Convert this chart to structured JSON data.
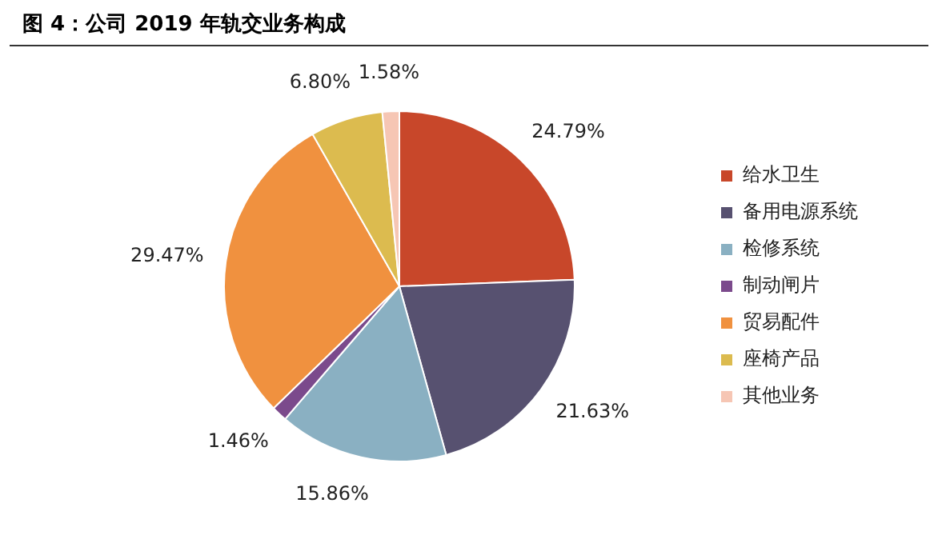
{
  "chart_data": {
    "type": "pie",
    "title": "图 4：公司 2019 年轨交业务构成",
    "categories": [
      "给水卫生",
      "备用电源系统",
      "检修系统",
      "制动闸片",
      "贸易配件",
      "座椅产品",
      "其他业务"
    ],
    "values": [
      24.79,
      21.63,
      15.86,
      1.46,
      29.47,
      6.8,
      1.58
    ],
    "colors": [
      "#c8472a",
      "#575170",
      "#8ab0c2",
      "#7b4a8c",
      "#f0913f",
      "#dcbb4f",
      "#f6c6b4"
    ],
    "value_labels": [
      "24.79%",
      "21.63%",
      "15.86%",
      "1.46%",
      "29.47%",
      "6.80%",
      "1.58%"
    ],
    "legend": "right"
  }
}
